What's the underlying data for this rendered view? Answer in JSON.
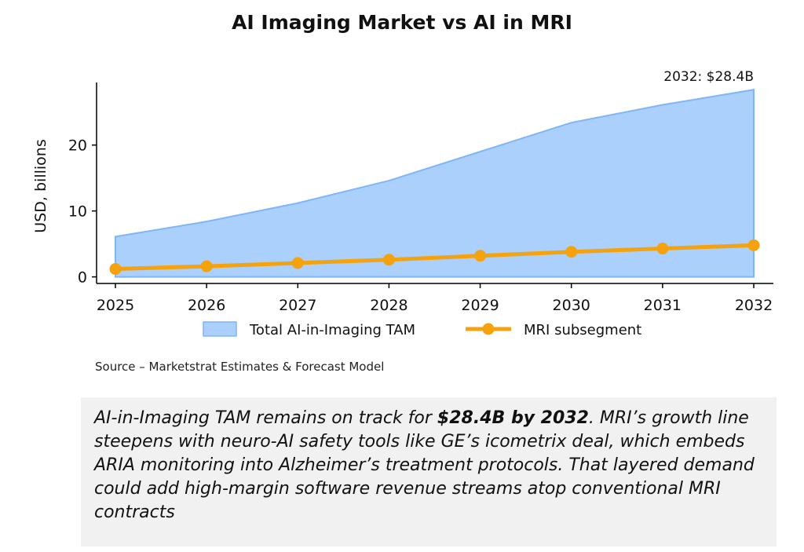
{
  "title": "AI Imaging Market vs AI in MRI",
  "source": "Source – Marketstrat Estimates & Forecast Model",
  "note": {
    "part1": "AI-in-Imaging TAM remains on track for ",
    "highlight": "$28.4B by 2032",
    "part2": ". MRI’s growth line steepens with neuro-AI safety tools like GE’s icometrix deal, which embeds ARIA monitoring into Alzheimer’s treatment protocols. That layered demand could add high-margin software revenue streams atop conventional MRI contracts"
  },
  "chart_data": {
    "type": "area",
    "title": "AI Imaging Market vs AI in MRI",
    "xlabel": "",
    "ylabel": "USD, billions",
    "x": [
      2025,
      2026,
      2027,
      2028,
      2029,
      2030,
      2031,
      2032
    ],
    "ylim": [
      -1,
      29.5
    ],
    "yticks": [
      0,
      10,
      20
    ],
    "series": [
      {
        "name": "Total AI-in-Imaging TAM",
        "kind": "area",
        "color": "#aad0fb",
        "edge": "#7fb6f5",
        "values": [
          6.1,
          8.4,
          11.2,
          14.6,
          19.0,
          23.4,
          26.1,
          28.4
        ]
      },
      {
        "name": "MRI subsegment",
        "kind": "line",
        "color": "#f5a20f",
        "values": [
          1.2,
          1.6,
          2.1,
          2.6,
          3.2,
          3.8,
          4.3,
          4.8
        ]
      }
    ],
    "annotation": "2032: $28.4B",
    "legend": "bottom-center"
  }
}
